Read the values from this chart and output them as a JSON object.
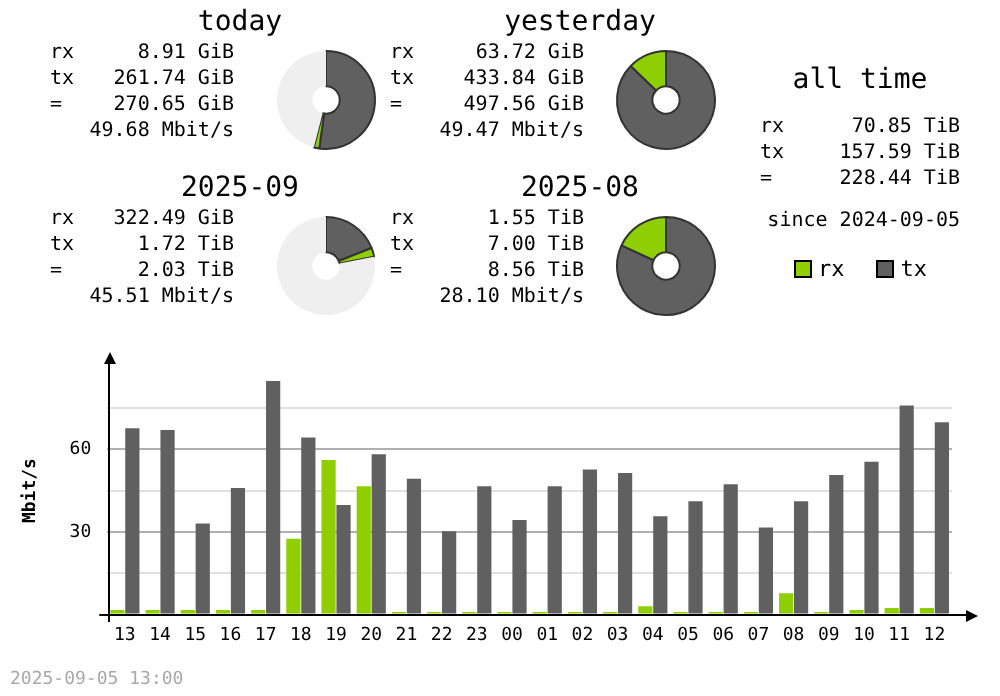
{
  "chart_data": [
    {
      "type": "donut",
      "title": "today",
      "categories": [
        null,
        null,
        null
      ],
      "values": [
        52.2,
        1.8,
        46
      ],
      "colors": [
        "#606060",
        "#8fce00",
        "#efefef"
      ],
      "annotations": [
        "rx 8.91 GiB",
        "tx 261.74 GiB",
        "= 270.65 GiB",
        "49.68 Mbit/s"
      ]
    },
    {
      "type": "donut",
      "title": "yesterday",
      "categories": [
        null,
        null
      ],
      "values": [
        87.2,
        12.8
      ],
      "colors": [
        "#606060",
        "#8fce00"
      ],
      "annotations": [
        "rx 63.72 GiB",
        "tx 433.84 GiB",
        "= 497.56 GiB",
        "49.47 Mbit/s"
      ]
    },
    {
      "type": "other",
      "title": "all time",
      "annotations": [
        "rx 70.85 TiB",
        "tx 157.59 TiB",
        "= 228.44 TiB",
        "since 2024-09-05"
      ]
    },
    {
      "type": "donut",
      "title": "2025-09",
      "categories": [
        null,
        null,
        null
      ],
      "values": [
        19,
        3,
        78
      ],
      "colors": [
        "#606060",
        "#8fce00",
        "#efefef"
      ],
      "annotations": [
        "rx 322.49 GiB",
        "tx 1.72 TiB",
        "= 2.03 TiB",
        "45.51 Mbit/s"
      ]
    },
    {
      "type": "donut",
      "title": "2025-08",
      "categories": [
        null,
        null
      ],
      "values": [
        81.9,
        18.1
      ],
      "colors": [
        "#606060",
        "#8fce00"
      ],
      "annotations": [
        "rx 1.55 TiB",
        "tx 7.00 TiB",
        "= 8.56 TiB",
        "28.10 Mbit/s"
      ]
    },
    {
      "type": "bar",
      "ylabel": "Mbit/s",
      "categories": [
        "13",
        "14",
        "15",
        "16",
        "17",
        "18",
        "19",
        "20",
        "21",
        "22",
        "23",
        "00",
        "01",
        "02",
        "03",
        "04",
        "05",
        "06",
        "07",
        "08",
        "09",
        "10",
        "11",
        "12"
      ],
      "series": [
        {
          "name": "rx",
          "color": "#8fce00",
          "values": [
            1.6,
            1.6,
            1.6,
            1.6,
            1.6,
            27.5,
            56.1,
            46.6,
            0.9,
            0.9,
            0.9,
            0.9,
            0.9,
            0.9,
            0.9,
            3.0,
            0.9,
            0.9,
            0.9,
            7.7,
            0.9,
            1.6,
            2.3,
            2.3
          ]
        },
        {
          "name": "tx",
          "color": "#606060",
          "values": [
            67.7,
            67.0,
            33.0,
            45.9,
            84.8,
            64.3,
            39.8,
            58.2,
            49.3,
            30.2,
            46.6,
            34.3,
            46.6,
            52.7,
            51.4,
            35.7,
            41.1,
            47.3,
            31.6,
            41.1,
            50.7,
            55.5,
            75.9,
            69.8
          ]
        }
      ],
      "ylim": [
        0,
        90
      ],
      "yticks": [
        {
          "value": 0,
          "label": null
        },
        {
          "value": 15,
          "label": null
        },
        30,
        {
          "value": 45,
          "label": null
        },
        60,
        {
          "value": 75,
          "label": null
        }
      ],
      "grid": "y",
      "legend": "top right",
      "annotations": [
        "2025-09-05 13:00"
      ]
    }
  ]
}
